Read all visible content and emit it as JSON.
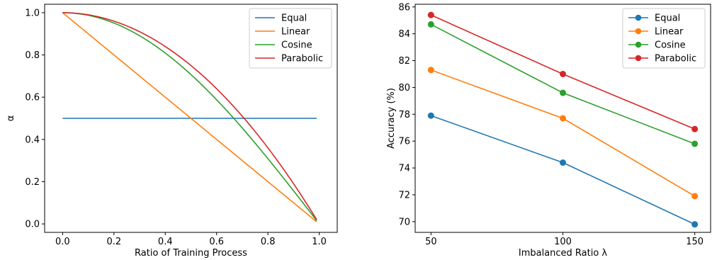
{
  "chart_data": [
    {
      "type": "line",
      "xlabel": "Ratio of Training Process",
      "ylabel": "α",
      "xlim": [
        -0.07,
        1.07
      ],
      "ylim": [
        -0.04,
        1.04
      ],
      "xticks": [
        "0.0",
        "0.2",
        "0.4",
        "0.6",
        "0.8",
        "1.0"
      ],
      "yticks": [
        "0.0",
        "0.2",
        "0.4",
        "0.6",
        "0.8",
        "1.0"
      ],
      "legend_position": "upper right",
      "series": [
        {
          "name": "Equal",
          "color": "#1f77b4",
          "function": "equal",
          "x": [
            0,
            0.5,
            0.99
          ],
          "y": [
            0.5,
            0.5,
            0.5
          ]
        },
        {
          "name": "Linear",
          "color": "#ff7f0e",
          "function": "linear",
          "x": [
            0,
            0.5,
            0.99
          ],
          "y": [
            1.0,
            0.5,
            0.01
          ]
        },
        {
          "name": "Cosine",
          "color": "#2ca02c",
          "function": "cosine",
          "x": [
            0,
            0.2,
            0.4,
            0.6,
            0.8,
            0.99
          ],
          "y": [
            1.0,
            0.95,
            0.81,
            0.59,
            0.31,
            0.02
          ]
        },
        {
          "name": "Parabolic",
          "color": "#d62728",
          "function": "parabolic",
          "x": [
            0,
            0.2,
            0.4,
            0.6,
            0.8,
            0.99
          ],
          "y": [
            1.0,
            0.96,
            0.84,
            0.64,
            0.36,
            0.02
          ]
        }
      ]
    },
    {
      "type": "line",
      "xlabel": "Imbalanced Ratio λ",
      "ylabel": "Accuracy (%)",
      "x": [
        50,
        100,
        150
      ],
      "xlim": [
        44,
        156
      ],
      "ylim": [
        69.2,
        86.2
      ],
      "xticks": [
        "50",
        "100",
        "150"
      ],
      "yticks": [
        "70",
        "72",
        "74",
        "76",
        "78",
        "80",
        "82",
        "84",
        "86"
      ],
      "legend_position": "upper right",
      "series": [
        {
          "name": "Equal",
          "color": "#1f77b4",
          "values": [
            77.9,
            74.4,
            69.8
          ]
        },
        {
          "name": "Linear",
          "color": "#ff7f0e",
          "values": [
            81.3,
            77.7,
            71.9
          ]
        },
        {
          "name": "Cosine",
          "color": "#2ca02c",
          "values": [
            84.7,
            79.6,
            75.8
          ]
        },
        {
          "name": "Parabolic",
          "color": "#d62728",
          "values": [
            85.4,
            81.0,
            76.9
          ]
        }
      ]
    }
  ]
}
